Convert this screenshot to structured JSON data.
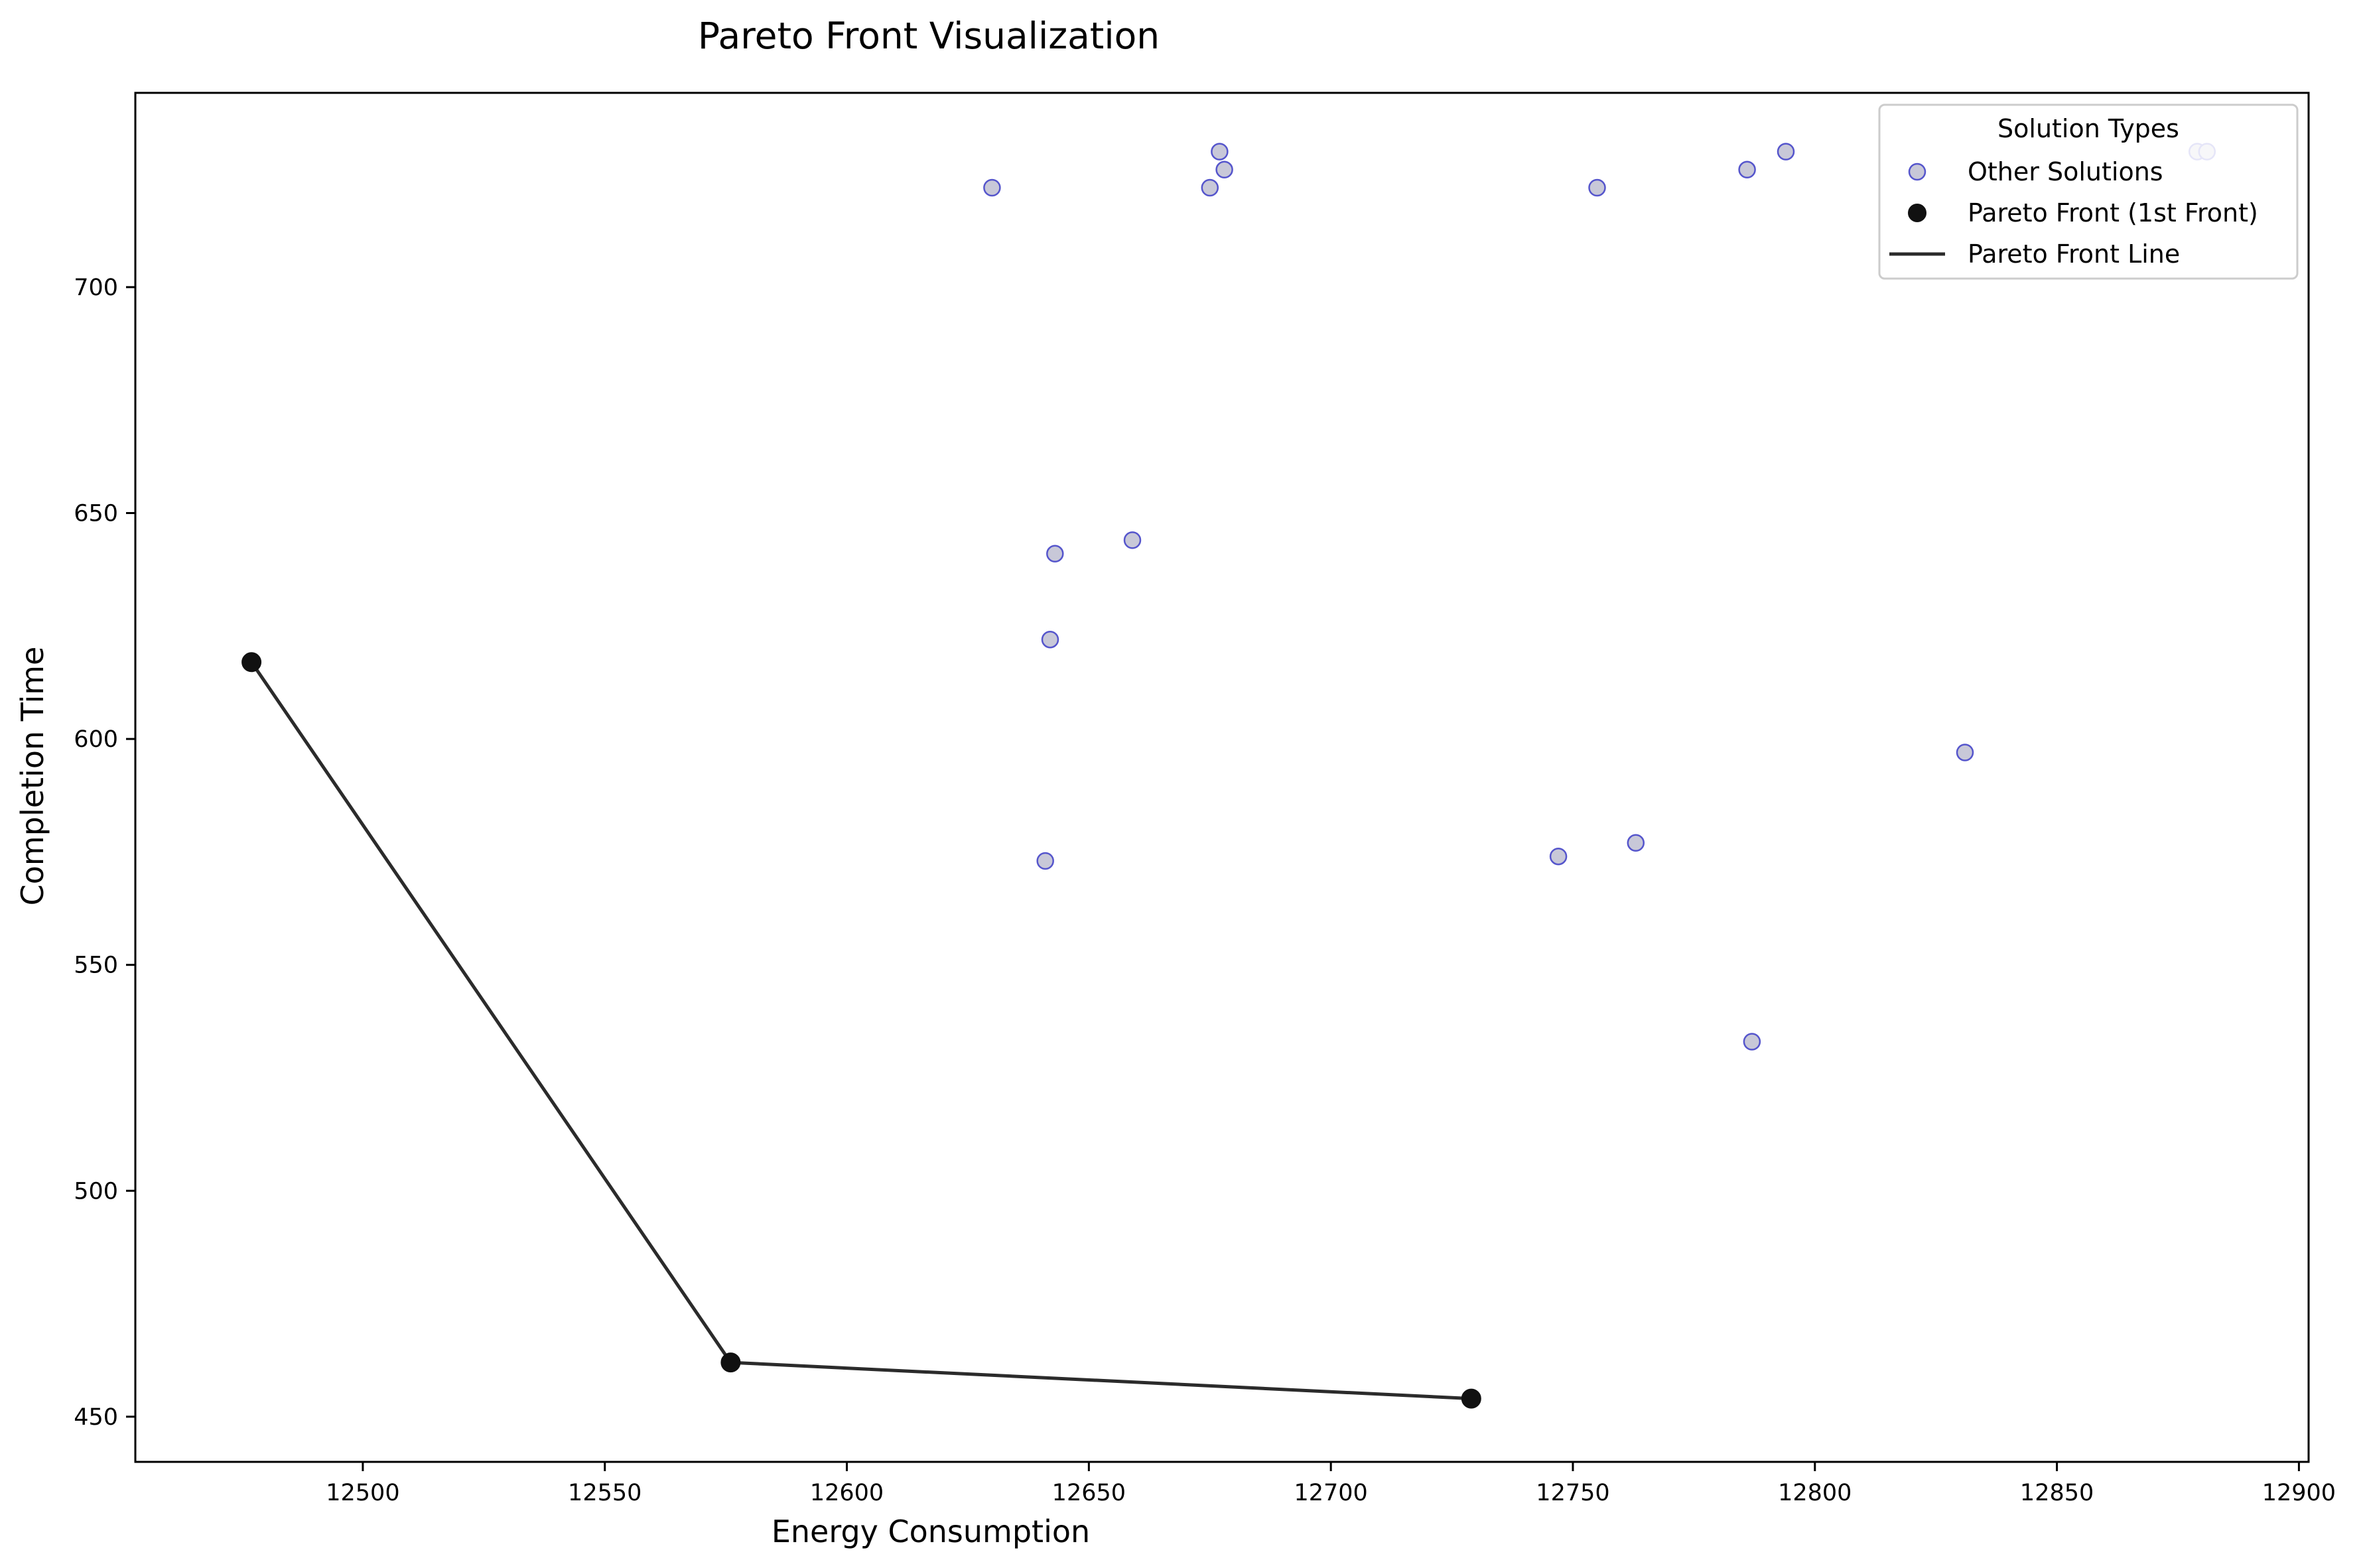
{
  "chart_data": {
    "type": "scatter",
    "title": "Pareto Front Visualization",
    "xlabel": "Energy Consumption",
    "ylabel": "Completion Time",
    "xlim": [
      12453,
      12902
    ],
    "ylim": [
      440,
      743
    ],
    "xticks": [
      12500,
      12550,
      12600,
      12650,
      12700,
      12750,
      12800,
      12850,
      12900
    ],
    "yticks": [
      450,
      500,
      550,
      600,
      650,
      700
    ],
    "grid": false,
    "legend": {
      "title": "Solution Types",
      "placement": "top-right",
      "entries": [
        "Other Solutions",
        "Pareto Front (1st Front)",
        "Pareto Front Line"
      ]
    },
    "series": [
      {
        "name": "Other Solutions",
        "marker": "circle",
        "fill": "#c8c8d8",
        "edge": "#5555cc",
        "points": [
          [
            12630,
            722
          ],
          [
            12677,
            730
          ],
          [
            12678,
            726
          ],
          [
            12675,
            722
          ],
          [
            12755,
            722
          ],
          [
            12786,
            726
          ],
          [
            12794,
            730
          ],
          [
            12879,
            730
          ],
          [
            12881,
            730
          ],
          [
            12659,
            644
          ],
          [
            12643,
            641
          ],
          [
            12642,
            622
          ],
          [
            12641,
            573
          ],
          [
            12747,
            574
          ],
          [
            12763,
            577
          ],
          [
            12831,
            597
          ],
          [
            12787,
            533
          ]
        ]
      },
      {
        "name": "Pareto Front (1st Front)",
        "marker": "circle",
        "fill": "#111111",
        "edge": "#111111",
        "points": [
          [
            12477,
            617
          ],
          [
            12576,
            462
          ],
          [
            12729,
            454
          ]
        ]
      },
      {
        "name": "Pareto Front Line",
        "marker": "line",
        "color": "#2b2b2b",
        "points": [
          [
            12477,
            617
          ],
          [
            12576,
            462
          ],
          [
            12729,
            454
          ]
        ]
      }
    ]
  }
}
